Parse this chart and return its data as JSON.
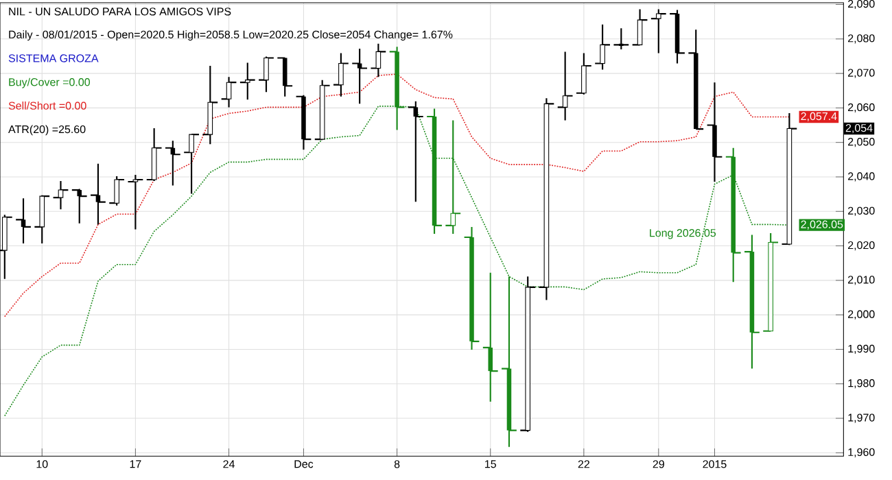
{
  "chart_data": {
    "type": "candlestick",
    "title": "NIL - UN SALUDO PARA LOS AMIGOS VIPS",
    "subtitle": "Daily - 08/01/2015 - Open=2020.5  High=2058.5  Low=2020.25  Close=2054  Change= 1.67%",
    "annotations": [
      "SISTEMA GROZA",
      "Buy/Cover =0.00",
      "Sell/Short =0.00",
      "ATR(20) =25.60",
      "Long 2026.05"
    ],
    "categories": [
      null,
      null,
      "10",
      null,
      null,
      null,
      null,
      "17",
      null,
      null,
      null,
      null,
      "24",
      null,
      null,
      null,
      "Dec",
      null,
      null,
      null,
      null,
      "8",
      null,
      null,
      null,
      null,
      "15",
      null,
      null,
      null,
      null,
      "22",
      null,
      null,
      null,
      "29",
      null,
      null,
      "2015",
      null,
      null,
      null,
      null
    ],
    "ylim": [
      1959,
      2090.5
    ],
    "yticks": [
      {
        "value": 1960,
        "label": "1,960"
      },
      {
        "value": 1970,
        "label": "1,970"
      },
      {
        "value": 1980,
        "label": "1,980"
      },
      {
        "value": 1990,
        "label": "1,990"
      },
      {
        "value": 2000,
        "label": "2,000"
      },
      {
        "value": 2010,
        "label": "2,010"
      },
      {
        "value": 2020,
        "label": "2,020"
      },
      {
        "value": 2030,
        "label": "2,030"
      },
      {
        "value": 2040,
        "label": "2,040"
      },
      {
        "value": 2050,
        "label": "2,050"
      },
      {
        "value": 2060,
        "label": "2,060"
      },
      {
        "value": 2070,
        "label": "2,070"
      },
      {
        "value": 2080,
        "label": "2,080"
      },
      {
        "value": 2090,
        "label": "2,090"
      }
    ],
    "grid": true,
    "series": [
      {
        "type": "line",
        "color": "#e02020",
        "line_style": "dotted",
        "values": [
          1999.5,
          2006.3,
          2011.1,
          2015,
          2015,
          2026.2,
          2029.2,
          2029.2,
          2039.2,
          2041.3,
          2044,
          2056.8,
          2058.4,
          2059.1,
          2060.2,
          2060.2,
          2060.2,
          2063.3,
          2063.9,
          2064.6,
          2069.4,
          2069.8,
          2065.3,
          2063,
          2062.6,
          2051.6,
          2045.4,
          2043.6,
          2043.6,
          2043.6,
          2042.7,
          2041.6,
          2047.5,
          2047.5,
          2050.2,
          2050.2,
          2050.5,
          2051.6,
          2063.3,
          2064.6,
          2057.4,
          2057.4,
          2057.4
        ],
        "value_labels": [
          null,
          null,
          null,
          null,
          null,
          null,
          null,
          null,
          null,
          null,
          null,
          null,
          null,
          null,
          null,
          null,
          null,
          null,
          null,
          null,
          null,
          null,
          null,
          null,
          null,
          null,
          null,
          null,
          null,
          null,
          null,
          null,
          null,
          null,
          null,
          null,
          null,
          null,
          null,
          null,
          null,
          null,
          "2,057.4"
        ]
      },
      {
        "type": "line",
        "color": "#1a8a1a",
        "line_style": "dotted",
        "values": [
          1970.7,
          1979.6,
          1987.8,
          1991.2,
          1991.2,
          2009.8,
          2014.6,
          2014.6,
          2024.2,
          2029,
          2034.4,
          2041.3,
          2044.3,
          2044.3,
          2045.1,
          2045.1,
          2045.1,
          2050.9,
          2051.6,
          2052,
          2060.5,
          2060.5,
          2060.2,
          2045.4,
          2045.4,
          2034,
          2022.5,
          2011.1,
          2008.1,
          2008.1,
          2008.1,
          2007.3,
          2010.4,
          2010.8,
          2012.5,
          2012.2,
          2012.2,
          2014.6,
          2037.9,
          2040.6,
          2026.2,
          2026.2,
          2026.05
        ],
        "value_labels": [
          null,
          null,
          null,
          null,
          null,
          null,
          null,
          null,
          null,
          null,
          null,
          null,
          null,
          null,
          null,
          null,
          null,
          null,
          null,
          null,
          null,
          null,
          null,
          null,
          null,
          null,
          null,
          null,
          null,
          null,
          null,
          null,
          null,
          null,
          null,
          null,
          null,
          null,
          null,
          null,
          null,
          null,
          "2,026.05"
        ]
      },
      {
        "colors": [
          "#000000",
          "#000000",
          "#000000",
          "#000000",
          "#000000",
          "#000000",
          "#000000",
          "#000000",
          "#000000",
          "#000000",
          "#000000",
          "#000000",
          "#000000",
          "#000000",
          "#000000",
          "#000000",
          "#000000",
          "#000000",
          "#000000",
          "#000000",
          "#000000",
          "#1a8a1a",
          "#000000",
          "#1a8a1a",
          "#1a8a1a",
          "#1a8a1a",
          "#1a8a1a",
          "#1a8a1a",
          "#000000",
          "#000000",
          "#000000",
          "#000000",
          "#000000",
          "#000000",
          "#000000",
          "#000000",
          "#000000",
          "#000000",
          "#000000",
          "#1a8a1a",
          "#1a8a1a",
          "#1a8a1a",
          "#000000"
        ],
        "ohlc": [
          [
            2018.7,
            2029,
            2010.4,
            2028.3
          ],
          [
            2027.6,
            2033.8,
            2020.7,
            2025.5
          ],
          [
            2025.5,
            2034.7,
            2020.7,
            2034.4
          ],
          [
            2034,
            2038.8,
            2030.6,
            2036.2
          ],
          [
            2036.2,
            2036.5,
            2026.5,
            2034.4
          ],
          [
            2034.7,
            2043.8,
            2026.2,
            2032.7
          ],
          [
            2032.4,
            2040.2,
            2031.7,
            2039.2
          ],
          [
            2038.6,
            2040.6,
            2024.8,
            2039.2
          ],
          [
            2039.2,
            2054.1,
            2038.8,
            2048.4
          ],
          [
            2048.4,
            2050.5,
            2037.5,
            2046.5
          ],
          [
            2047.1,
            2052.3,
            2035.1,
            2052.3
          ],
          [
            2052.3,
            2072.2,
            2049.5,
            2061.6
          ],
          [
            2062.6,
            2069,
            2060.2,
            2067.4
          ],
          [
            2067.4,
            2073.1,
            2062.4,
            2068.1
          ],
          [
            2068.1,
            2074.9,
            2064.6,
            2074.5
          ],
          [
            2074.5,
            2074.5,
            2063.3,
            2066.4
          ],
          [
            2063.3,
            2063.7,
            2047.9,
            2050.9
          ],
          [
            2050.9,
            2068.1,
            2050.9,
            2066.5
          ],
          [
            2066.7,
            2075.9,
            2063.3,
            2072.9
          ],
          [
            2072.9,
            2077.2,
            2061.2,
            2071.5
          ],
          [
            2071.5,
            2078.6,
            2069,
            2076.3
          ],
          [
            2076.3,
            2077.7,
            2053.6,
            2060.2
          ],
          [
            2060.2,
            2061.9,
            2032.8,
            2057.5
          ],
          [
            2057.5,
            2059.8,
            2023.5,
            2025.9
          ],
          [
            2025.9,
            2056.4,
            2023.5,
            2029.4
          ],
          [
            2022.5,
            2025.5,
            1989.9,
            1992.3
          ],
          [
            1990.5,
            2012.2,
            1974.8,
            1983.7
          ],
          [
            1984.4,
            2011.1,
            1961.7,
            1966.5
          ],
          [
            1966.5,
            2011.1,
            1966.1,
            2008
          ],
          [
            2008,
            2062.8,
            2004.3,
            2061.2
          ],
          [
            2060.2,
            2076.3,
            2056.4,
            2063.5
          ],
          [
            2064.3,
            2075.9,
            2063.9,
            2072.2
          ],
          [
            2072.9,
            2084.2,
            2071.1,
            2078.3
          ],
          [
            2078.3,
            2083.1,
            2077,
            2078.3
          ],
          [
            2078.3,
            2088.6,
            2078.3,
            2085.5
          ],
          [
            2085.9,
            2088.6,
            2075.9,
            2087.3
          ],
          [
            2087.3,
            2088.4,
            2072.9,
            2075.9
          ],
          [
            2075.9,
            2082.7,
            2053.9,
            2053.9
          ],
          [
            2055,
            2067.4,
            2038.6,
            2045.8
          ],
          [
            2045.8,
            2048.4,
            2009.5,
            2018
          ],
          [
            2018.3,
            2023.2,
            1984.4,
            1994.9
          ],
          [
            1995.3,
            2023.7,
            1995.3,
            2021
          ],
          [
            2020.5,
            2058.5,
            2020.25,
            2054
          ]
        ],
        "value_labels": [
          null,
          null,
          null,
          null,
          null,
          null,
          null,
          null,
          null,
          null,
          null,
          null,
          null,
          null,
          null,
          null,
          null,
          null,
          null,
          null,
          null,
          null,
          null,
          null,
          null,
          null,
          null,
          null,
          null,
          null,
          null,
          null,
          null,
          null,
          null,
          null,
          null,
          null,
          null,
          null,
          null,
          null,
          "2,054"
        ]
      }
    ]
  }
}
